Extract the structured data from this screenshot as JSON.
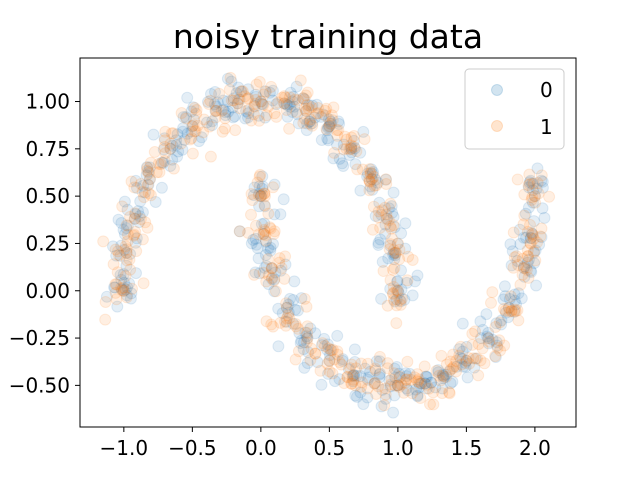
{
  "chart_data": {
    "type": "scatter",
    "title": "noisy training data",
    "xlabel": "",
    "ylabel": "",
    "xlim": [
      -1.32,
      2.3
    ],
    "ylim": [
      -0.72,
      1.23
    ],
    "xticks": [
      -1.0,
      -0.5,
      0.0,
      0.5,
      1.0,
      1.5,
      2.0
    ],
    "xtick_labels": [
      "−1.0",
      "−0.5",
      "0.0",
      "0.5",
      "1.0",
      "1.5",
      "2.0"
    ],
    "yticks": [
      -0.5,
      -0.25,
      0.0,
      0.25,
      0.5,
      0.75,
      1.0
    ],
    "ytick_labels": [
      "−0.50",
      "−0.25",
      "0.00",
      "0.25",
      "0.50",
      "0.75",
      "1.00"
    ],
    "grid": false,
    "legend_position": "top-right",
    "series": [
      {
        "name": "0",
        "color": "#1f77b4",
        "alpha": 0.12,
        "description": "two interleaving half-moons, noisy; upper moon arcs from (-1,0) over (0,1) to (1,0); lower moon arcs from (0,0.5) down through (1,-0.5) to (2,0.5)",
        "x": [
          -1.0,
          -0.98,
          -0.92,
          -0.81,
          -0.66,
          -0.5,
          -0.33,
          -0.17,
          0.0,
          0.17,
          0.33,
          0.5,
          0.66,
          0.81,
          0.92,
          0.98,
          1.0,
          0.0,
          0.02,
          0.08,
          0.19,
          0.34,
          0.5,
          0.67,
          0.83,
          1.0,
          1.17,
          1.33,
          1.5,
          1.66,
          1.81,
          1.92,
          1.98,
          2.0
        ],
        "y": [
          0.0,
          0.2,
          0.38,
          0.59,
          0.75,
          0.87,
          0.95,
          0.99,
          1.0,
          0.99,
          0.95,
          0.87,
          0.75,
          0.59,
          0.38,
          0.2,
          0.0,
          0.5,
          0.3,
          0.12,
          -0.09,
          -0.25,
          -0.37,
          -0.45,
          -0.49,
          -0.5,
          -0.49,
          -0.45,
          -0.37,
          -0.25,
          -0.09,
          0.12,
          0.3,
          0.5
        ]
      },
      {
        "name": "1",
        "color": "#ff7f0e",
        "alpha": 0.12,
        "description": "same two half-moon shapes as series 0, overlapping (noisy labels)",
        "x": [
          -1.0,
          -0.98,
          -0.92,
          -0.81,
          -0.66,
          -0.5,
          -0.33,
          -0.17,
          0.0,
          0.17,
          0.33,
          0.5,
          0.66,
          0.81,
          0.92,
          0.98,
          1.0,
          0.0,
          0.02,
          0.08,
          0.19,
          0.34,
          0.5,
          0.67,
          0.83,
          1.0,
          1.17,
          1.33,
          1.5,
          1.66,
          1.81,
          1.92,
          1.98,
          2.0
        ],
        "y": [
          0.0,
          0.2,
          0.38,
          0.59,
          0.75,
          0.87,
          0.95,
          0.99,
          1.0,
          0.99,
          0.95,
          0.87,
          0.75,
          0.59,
          0.38,
          0.2,
          0.0,
          0.5,
          0.3,
          0.12,
          -0.09,
          -0.25,
          -0.37,
          -0.45,
          -0.49,
          -0.5,
          -0.49,
          -0.45,
          -0.37,
          -0.25,
          -0.09,
          0.12,
          0.3,
          0.5
        ]
      }
    ]
  }
}
